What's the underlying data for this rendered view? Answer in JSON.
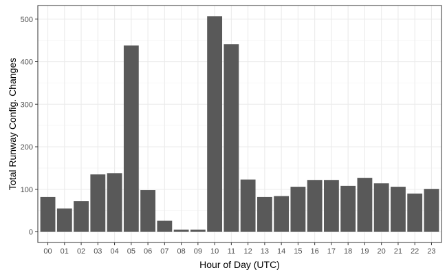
{
  "chart_data": {
    "type": "bar",
    "title": "",
    "xlabel": "Hour of Day (UTC)",
    "ylabel": "Total Runway Config. Changes",
    "categories": [
      "00",
      "01",
      "02",
      "03",
      "04",
      "05",
      "06",
      "07",
      "08",
      "09",
      "10",
      "11",
      "12",
      "13",
      "14",
      "15",
      "16",
      "17",
      "18",
      "19",
      "20",
      "21",
      "22",
      "23"
    ],
    "values": [
      82,
      55,
      72,
      135,
      138,
      438,
      98,
      26,
      5,
      5,
      507,
      441,
      123,
      82,
      84,
      106,
      122,
      122,
      108,
      127,
      114,
      106,
      90,
      101
    ],
    "y_ticks": [
      0,
      100,
      200,
      300,
      400,
      500
    ],
    "y_tick_labels": [
      "0",
      "100",
      "200",
      "300",
      "400",
      "500"
    ],
    "ylim": [
      -25,
      532
    ],
    "grid": true,
    "legend": "none",
    "colors": {
      "bar": "#595959",
      "grid_major": "#ebebeb",
      "grid_minor": "#f5f5f5",
      "panel_border": "#333333",
      "text": "#4d4d4d",
      "title_text": "#000000"
    }
  }
}
